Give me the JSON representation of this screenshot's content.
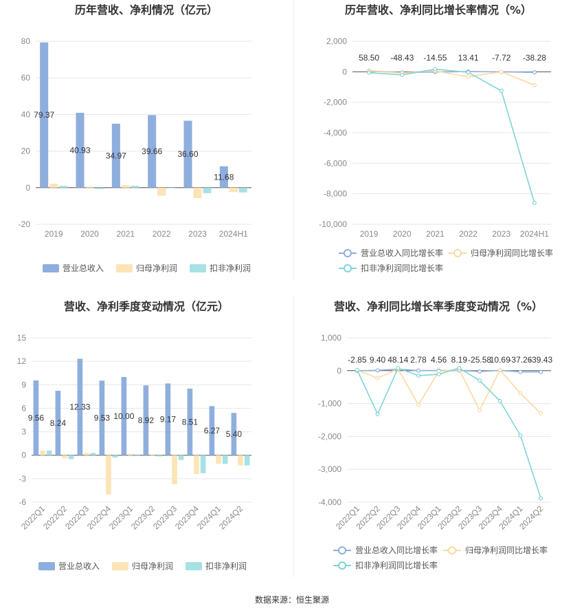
{
  "source_note": "数据来源：恒生聚源",
  "colors": {
    "revenue": "#8eaedd",
    "net_profit": "#fde4b6",
    "deducted_profit": "#a6e1e3",
    "revenue_line": "#8eaedd",
    "net_profit_line": "#fbd99e",
    "deducted_profit_line": "#7fd3d7",
    "grid": "#e6e6e6",
    "axis": "#555555"
  },
  "chart_data": [
    {
      "type": "bar",
      "title": "历年营收、净利情况（亿元）",
      "categories": [
        "2019",
        "2020",
        "2021",
        "2022",
        "2023",
        "2024H1"
      ],
      "series": [
        {
          "name": "营业总收入",
          "values": [
            79.37,
            40.93,
            34.97,
            39.66,
            36.6,
            11.68
          ]
        },
        {
          "name": "归母净利润",
          "values": [
            2.2,
            0.6,
            1.4,
            -4.4,
            -5.7,
            -2.4
          ]
        },
        {
          "name": "扣非净利润",
          "values": [
            1.0,
            -0.8,
            1.0,
            -0.3,
            -3.0,
            -2.6
          ]
        }
      ],
      "data_labels": [
        "79.37",
        "40.93",
        "34.97",
        "39.66",
        "36.60",
        "11.68"
      ],
      "ylim": [
        -20,
        80
      ],
      "yticks": [
        -20,
        0,
        20,
        40,
        60,
        80
      ],
      "grid": true,
      "legend": "bottom"
    },
    {
      "type": "line",
      "title": "历年营收、净利同比增长率情况（%）",
      "categories": [
        "2019",
        "2020",
        "2021",
        "2022",
        "2023",
        "2024H1"
      ],
      "series": [
        {
          "name": "营业总收入同比增长率",
          "values": [
            58.5,
            -48.43,
            -14.55,
            13.41,
            -7.72,
            -38.28
          ]
        },
        {
          "name": "归母净利润同比增长率",
          "values": [
            40,
            -80,
            60,
            -330,
            0,
            -880
          ]
        },
        {
          "name": "扣非净利润同比增长率",
          "values": [
            -60,
            -200,
            170,
            -40,
            -1250,
            -8600
          ]
        }
      ],
      "data_labels": [
        "58.50",
        "-48.43",
        "-14.55",
        "13.41",
        "-7.72",
        "-38.28"
      ],
      "ylim": [
        -10000,
        2000
      ],
      "yticks": [
        -10000,
        -8000,
        -6000,
        -4000,
        -2000,
        0,
        2000
      ],
      "ytick_labels": [
        "-10,000",
        "-8,000",
        "-6,000",
        "-4,000",
        "-2,000",
        "0",
        "2,000"
      ],
      "grid": true,
      "legend": "bottom"
    },
    {
      "type": "bar",
      "title": "营收、净利季度变动情况（亿元）",
      "categories": [
        "2022Q1",
        "2022Q2",
        "2022Q3",
        "2022Q4",
        "2023Q1",
        "2023Q2",
        "2023Q3",
        "2023Q4",
        "2024Q1",
        "2024Q2"
      ],
      "series": [
        {
          "name": "营业总收入",
          "values": [
            9.56,
            8.24,
            12.33,
            9.53,
            10.0,
            8.92,
            9.17,
            8.51,
            6.27,
            5.4
          ]
        },
        {
          "name": "归母净利润",
          "values": [
            0.6,
            -0.4,
            0.3,
            -5.0,
            0.15,
            -0.1,
            -3.7,
            -2.4,
            -1.1,
            -1.3
          ]
        },
        {
          "name": "扣非净利润",
          "values": [
            0.6,
            -0.5,
            0.3,
            -0.3,
            0.1,
            -0.15,
            -0.6,
            -2.3,
            -1.1,
            -1.3
          ]
        }
      ],
      "data_labels": [
        "9.56",
        "8.24",
        "12.33",
        "9.53",
        "10.00",
        "8.92",
        "9.17",
        "8.51",
        "6.27",
        "5.40"
      ],
      "ylim": [
        -6,
        15
      ],
      "yticks": [
        -6,
        -3,
        0,
        3,
        6,
        9,
        12,
        15
      ],
      "grid": true,
      "legend": "bottom"
    },
    {
      "type": "line",
      "title": "营收、净利同比增长率季度变动情况（%）",
      "categories": [
        "2022Q1",
        "2022Q2",
        "2022Q3",
        "2022Q4",
        "2023Q1",
        "2023Q2",
        "2023Q3",
        "2023Q4",
        "2024Q1",
        "2024Q2"
      ],
      "series": [
        {
          "name": "营业总收入同比增长率",
          "values": [
            -2.85,
            9.4,
            48.14,
            2.78,
            4.56,
            8.19,
            -25.58,
            10.69,
            -37.26,
            -39.43
          ]
        },
        {
          "name": "归母净利润同比增长率",
          "values": [
            20,
            -230,
            60,
            -1040,
            -20,
            30,
            -1200,
            20,
            -690,
            -1300
          ]
        },
        {
          "name": "扣非净利润同比增长率",
          "values": [
            20,
            -1320,
            80,
            -150,
            -110,
            80,
            -300,
            -920,
            -1970,
            -3880
          ]
        }
      ],
      "data_labels": [
        "-2.85",
        "9.40",
        "48.14",
        "2.78",
        "4.56",
        "8.19",
        "-25.58",
        "10.69",
        "-37.26",
        "-39.43"
      ],
      "ylim": [
        -4000,
        1000
      ],
      "yticks": [
        -4000,
        -3000,
        -2000,
        -1000,
        0,
        1000
      ],
      "ytick_labels": [
        "-4,000",
        "-3,000",
        "-2,000",
        "-1,000",
        "0",
        "1,000"
      ],
      "grid": true,
      "legend": "bottom"
    }
  ]
}
